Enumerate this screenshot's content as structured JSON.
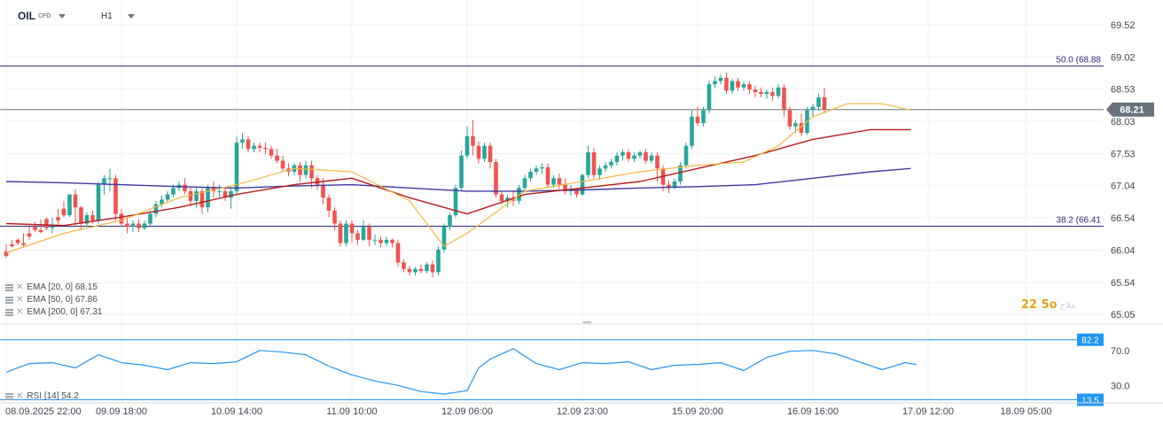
{
  "toolbar": {
    "symbol": "OIL",
    "symbol_tag": "CFD",
    "timeframe": "H1"
  },
  "colors": {
    "up": "#26a69a",
    "down": "#ef5350",
    "ema20": "#f5b841",
    "ema50": "#b71c1c",
    "ema200": "#3f3aa0",
    "fib": "#2c2a7a",
    "last_price": "#68737d",
    "rsi": "#2196f3"
  },
  "legend": {
    "ema20": "EMA [20, 0] 68.15",
    "ema50": "EMA [50, 0] 67.86",
    "ema200": "EMA [200, 0] 67.31",
    "rsi": "RSI [14] 54.2"
  },
  "watermark": {
    "text": "22 5o",
    "faint": "ملاح"
  },
  "chart_data": [
    {
      "type": "candlestick",
      "title": "",
      "ylim": [
        64.9,
        69.9
      ],
      "y_ticks": [
        "65.05",
        "65.54",
        "66.04",
        "66.54",
        "67.04",
        "67.53",
        "68.03",
        "68.53",
        "69.02",
        "69.52"
      ],
      "x_labels": [
        {
          "label": "08.09.2025 22:00",
          "index": 0
        },
        {
          "label": "09.09 18:00",
          "index": 20
        },
        {
          "label": "10.09 14:00",
          "index": 40
        },
        {
          "label": "11.09 10:00",
          "index": 60
        },
        {
          "label": "12.09 06:00",
          "index": 80
        },
        {
          "label": "12.09 23:00",
          "index": 100
        },
        {
          "label": "15.09 20:00",
          "index": 120
        },
        {
          "label": "16.09 16:00",
          "index": 140
        },
        {
          "label": "17.09 12:00",
          "index": 160
        },
        {
          "label": "18.09 05:00",
          "index": 177
        }
      ],
      "last_price": 68.21,
      "levels": [
        {
          "label": "50.0 (68.88",
          "value": 68.88
        },
        {
          "label": "38.2 (66.41",
          "value": 66.41
        }
      ],
      "candles": [
        [
          66.02,
          66.13,
          65.95,
          65.92
        ],
        [
          66.13,
          66.2,
          66.1,
          66.08
        ],
        [
          66.2,
          66.22,
          66.15,
          66.12
        ],
        [
          66.15,
          66.3,
          66.12,
          66.08
        ],
        [
          66.3,
          66.4,
          66.25,
          66.2
        ],
        [
          66.4,
          66.48,
          66.35,
          66.32
        ],
        [
          66.35,
          66.52,
          66.32,
          66.3
        ],
        [
          66.52,
          66.55,
          66.38,
          66.35
        ],
        [
          66.38,
          66.55,
          66.4,
          66.3
        ],
        [
          66.55,
          66.68,
          66.5,
          66.42
        ],
        [
          66.68,
          66.8,
          66.58,
          66.55
        ],
        [
          66.58,
          66.9,
          66.9,
          66.55
        ],
        [
          66.9,
          66.98,
          66.7,
          66.4
        ],
        [
          66.7,
          66.72,
          66.45,
          66.35
        ],
        [
          66.45,
          66.62,
          66.58,
          66.4
        ],
        [
          66.58,
          66.65,
          66.5,
          66.45
        ],
        [
          66.5,
          67.1,
          67.05,
          66.45
        ],
        [
          67.05,
          67.2,
          67.15,
          66.9
        ],
        [
          67.15,
          67.3,
          67.15,
          66.95
        ],
        [
          67.15,
          67.2,
          66.6,
          66.5
        ],
        [
          66.6,
          66.68,
          66.45,
          66.4
        ],
        [
          66.45,
          66.55,
          66.4,
          66.3
        ],
        [
          66.4,
          66.5,
          66.45,
          66.32
        ],
        [
          66.45,
          66.52,
          66.38,
          66.32
        ],
        [
          66.38,
          66.5,
          66.45,
          66.35
        ],
        [
          66.45,
          66.65,
          66.6,
          66.42
        ],
        [
          66.6,
          66.8,
          66.75,
          66.55
        ],
        [
          66.75,
          66.88,
          66.82,
          66.7
        ],
        [
          66.82,
          66.95,
          66.9,
          66.78
        ],
        [
          66.9,
          67.05,
          67.0,
          66.85
        ],
        [
          67.0,
          67.1,
          67.05,
          66.95
        ],
        [
          67.05,
          67.15,
          66.95,
          66.9
        ],
        [
          66.95,
          67.02,
          66.8,
          66.72
        ],
        [
          66.8,
          67.0,
          66.95,
          66.7
        ],
        [
          66.95,
          67.02,
          66.7,
          66.6
        ],
        [
          66.7,
          67.05,
          67.0,
          66.62
        ],
        [
          67.0,
          67.1,
          66.95,
          66.85
        ],
        [
          66.95,
          67.05,
          66.95,
          66.85
        ],
        [
          66.95,
          67.0,
          66.85,
          66.8
        ],
        [
          66.85,
          67.0,
          66.95,
          66.68
        ],
        [
          66.95,
          67.8,
          67.7,
          66.9
        ],
        [
          67.7,
          67.85,
          67.75,
          67.6
        ],
        [
          67.75,
          67.8,
          67.6,
          67.55
        ],
        [
          67.6,
          67.7,
          67.65,
          67.55
        ],
        [
          67.65,
          67.7,
          67.62,
          67.55
        ],
        [
          67.62,
          67.7,
          67.6,
          67.52
        ],
        [
          67.6,
          67.65,
          67.5,
          67.45
        ],
        [
          67.5,
          67.6,
          67.42,
          67.38
        ],
        [
          67.42,
          67.5,
          67.3,
          67.25
        ],
        [
          67.3,
          67.38,
          67.25,
          67.18
        ],
        [
          67.25,
          67.38,
          67.35,
          67.2
        ],
        [
          67.35,
          67.4,
          67.2,
          67.1
        ],
        [
          67.2,
          67.42,
          67.35,
          67.15
        ],
        [
          67.35,
          67.42,
          67.15,
          67.0
        ],
        [
          67.15,
          67.2,
          67.05,
          66.98
        ],
        [
          67.05,
          67.15,
          66.85,
          66.75
        ],
        [
          66.85,
          66.9,
          66.65,
          66.55
        ],
        [
          66.65,
          66.7,
          66.45,
          66.35
        ],
        [
          66.45,
          66.5,
          66.15,
          66.1
        ],
        [
          66.15,
          66.5,
          66.45,
          66.1
        ],
        [
          66.45,
          66.5,
          66.3,
          66.15
        ],
        [
          66.3,
          66.35,
          66.2,
          66.12
        ],
        [
          66.2,
          66.5,
          66.4,
          66.18
        ],
        [
          66.4,
          66.45,
          66.2,
          66.1
        ],
        [
          66.2,
          66.28,
          66.2,
          66.12
        ],
        [
          66.2,
          66.25,
          66.15,
          66.08
        ],
        [
          66.15,
          66.25,
          66.2,
          66.1
        ],
        [
          66.2,
          66.22,
          66.15,
          66.08
        ],
        [
          66.15,
          66.2,
          65.85,
          65.78
        ],
        [
          65.85,
          65.9,
          65.75,
          65.7
        ],
        [
          65.75,
          65.8,
          65.7,
          65.65
        ],
        [
          65.7,
          65.78,
          65.75,
          65.65
        ],
        [
          65.75,
          65.82,
          65.72,
          65.68
        ],
        [
          65.72,
          65.85,
          65.82,
          65.68
        ],
        [
          65.82,
          65.88,
          65.7,
          65.62
        ],
        [
          65.7,
          66.1,
          66.05,
          65.65
        ],
        [
          66.05,
          66.45,
          66.4,
          66.0
        ],
        [
          66.4,
          66.62,
          66.58,
          66.35
        ],
        [
          66.58,
          67.05,
          67.0,
          66.55
        ],
        [
          67.0,
          67.58,
          67.5,
          66.95
        ],
        [
          67.5,
          67.95,
          67.8,
          67.45
        ],
        [
          67.8,
          68.05,
          67.65,
          67.5
        ],
        [
          67.65,
          67.72,
          67.45,
          67.38
        ],
        [
          67.45,
          67.7,
          67.65,
          67.4
        ],
        [
          67.65,
          67.7,
          67.4,
          67.3
        ],
        [
          67.4,
          67.45,
          66.9,
          66.85
        ],
        [
          66.9,
          66.95,
          66.8,
          66.75
        ],
        [
          66.8,
          66.9,
          66.85,
          66.7
        ],
        [
          66.85,
          66.95,
          66.8,
          66.72
        ],
        [
          66.8,
          67.05,
          67.0,
          66.75
        ],
        [
          67.0,
          67.2,
          67.15,
          66.95
        ],
        [
          67.15,
          67.3,
          67.25,
          67.1
        ],
        [
          67.25,
          67.35,
          67.3,
          67.2
        ],
        [
          67.3,
          67.38,
          67.32,
          67.22
        ],
        [
          67.32,
          67.38,
          67.05,
          67.0
        ],
        [
          67.05,
          67.2,
          67.15,
          67.0
        ],
        [
          67.15,
          67.22,
          67.05,
          66.98
        ],
        [
          67.05,
          67.15,
          66.95,
          66.9
        ],
        [
          66.95,
          67.05,
          66.98,
          66.88
        ],
        [
          66.98,
          67.0,
          66.9,
          66.85
        ],
        [
          66.9,
          67.22,
          67.2,
          66.88
        ],
        [
          67.2,
          67.65,
          67.55,
          67.15
        ],
        [
          67.55,
          67.62,
          67.2,
          67.15
        ],
        [
          67.2,
          67.35,
          67.3,
          67.12
        ],
        [
          67.3,
          67.4,
          67.35,
          67.25
        ],
        [
          67.35,
          67.45,
          67.4,
          67.3
        ],
        [
          67.4,
          67.55,
          67.5,
          67.35
        ],
        [
          67.5,
          67.6,
          67.55,
          67.42
        ],
        [
          67.55,
          67.6,
          67.45,
          67.4
        ],
        [
          67.45,
          67.55,
          67.5,
          67.4
        ],
        [
          67.5,
          67.58,
          67.55,
          67.45
        ],
        [
          67.55,
          67.6,
          67.42,
          67.38
        ],
        [
          67.42,
          67.55,
          67.5,
          67.38
        ],
        [
          67.5,
          67.55,
          67.3,
          67.1
        ],
        [
          67.3,
          67.35,
          67.05,
          66.95
        ],
        [
          67.05,
          67.12,
          67.0,
          66.92
        ],
        [
          67.0,
          67.15,
          67.1,
          66.98
        ],
        [
          67.1,
          67.4,
          67.35,
          67.05
        ],
        [
          67.35,
          67.7,
          67.65,
          67.3
        ],
        [
          67.65,
          68.2,
          68.1,
          67.6
        ],
        [
          68.1,
          68.25,
          68.0,
          67.95
        ],
        [
          68.0,
          68.25,
          68.2,
          67.95
        ],
        [
          68.2,
          68.65,
          68.6,
          68.15
        ],
        [
          68.6,
          68.72,
          68.65,
          68.55
        ],
        [
          68.65,
          68.75,
          68.7,
          68.6
        ],
        [
          68.7,
          68.78,
          68.5,
          68.45
        ],
        [
          68.5,
          68.68,
          68.65,
          68.45
        ],
        [
          68.65,
          68.7,
          68.55,
          68.5
        ],
        [
          68.55,
          68.65,
          68.6,
          68.5
        ],
        [
          68.6,
          68.65,
          68.52,
          68.45
        ],
        [
          68.52,
          68.58,
          68.48,
          68.4
        ],
        [
          68.48,
          68.55,
          68.45,
          68.4
        ],
        [
          68.45,
          68.52,
          68.48,
          68.38
        ],
        [
          68.48,
          68.55,
          68.42,
          68.35
        ],
        [
          68.42,
          68.6,
          68.55,
          68.38
        ],
        [
          68.55,
          68.6,
          68.2,
          68.1
        ],
        [
          68.2,
          68.25,
          67.95,
          67.9
        ],
        [
          67.95,
          68.05,
          68.0,
          67.85
        ],
        [
          68.0,
          68.15,
          67.85,
          67.8
        ],
        [
          67.85,
          68.25,
          68.2,
          67.82
        ],
        [
          68.2,
          68.3,
          68.25,
          68.1
        ],
        [
          68.25,
          68.45,
          68.4,
          68.2
        ],
        [
          68.4,
          68.55,
          68.21,
          68.15
        ]
      ],
      "ema20": {
        "x": [
          0,
          10,
          20,
          30,
          40,
          50,
          60,
          70,
          76,
          80,
          90,
          100,
          110,
          120,
          128,
          134,
          140,
          146,
          152,
          157
        ],
        "y": [
          66.0,
          66.3,
          66.5,
          66.85,
          67.05,
          67.3,
          67.25,
          66.8,
          66.1,
          66.3,
          66.95,
          67.1,
          67.25,
          67.35,
          67.4,
          67.65,
          68.1,
          68.3,
          68.3,
          68.2
        ]
      },
      "ema50": {
        "x": [
          0,
          10,
          20,
          30,
          40,
          50,
          60,
          70,
          80,
          90,
          100,
          110,
          120,
          130,
          140,
          150,
          157
        ],
        "y": [
          66.45,
          66.42,
          66.55,
          66.7,
          66.9,
          67.05,
          67.15,
          66.85,
          66.6,
          66.9,
          67.0,
          67.1,
          67.3,
          67.5,
          67.75,
          67.9,
          67.9
        ]
      },
      "ema200": {
        "x": [
          0,
          10,
          20,
          30,
          40,
          50,
          60,
          70,
          80,
          90,
          100,
          110,
          120,
          130,
          140,
          150,
          157
        ],
        "y": [
          67.1,
          67.08,
          67.05,
          67.02,
          67.0,
          67.03,
          67.05,
          67.0,
          66.95,
          66.95,
          66.97,
          67.0,
          67.02,
          67.05,
          67.15,
          67.25,
          67.3
        ]
      }
    },
    {
      "type": "line",
      "title": "",
      "ylim": [
        10,
        90
      ],
      "y_ticks": [
        "70.0",
        "30.0"
      ],
      "levels": [
        {
          "label": "82.2",
          "value": 82.2
        },
        {
          "label": "13.5",
          "value": 13.5
        }
      ],
      "x": [
        0,
        4,
        8,
        12,
        16,
        20,
        24,
        28,
        32,
        36,
        40,
        44,
        48,
        52,
        56,
        60,
        64,
        68,
        72,
        76,
        80,
        82,
        84,
        88,
        92,
        96,
        100,
        104,
        108,
        112,
        116,
        120,
        124,
        128,
        132,
        136,
        140,
        144,
        148,
        152,
        156,
        158
      ],
      "y": [
        45,
        55,
        56,
        50,
        65,
        56,
        53,
        48,
        56,
        55,
        57,
        70,
        68,
        65,
        52,
        42,
        35,
        30,
        23,
        20,
        24,
        50,
        60,
        72,
        55,
        48,
        56,
        55,
        57,
        48,
        53,
        54,
        56,
        47,
        62,
        69,
        70,
        66,
        57,
        48,
        56,
        54
      ]
    }
  ]
}
